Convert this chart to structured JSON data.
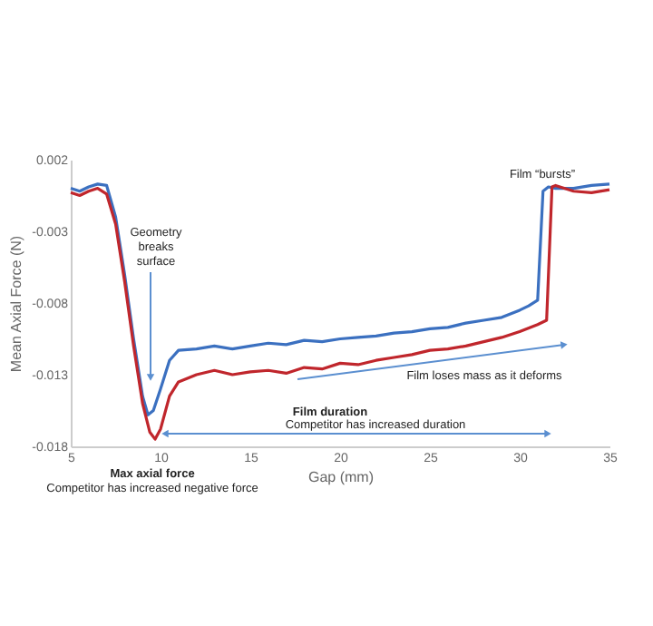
{
  "chart_data": {
    "type": "line",
    "xlabel": "Gap (mm)",
    "ylabel": "Mean Axial Force (N)",
    "xlim": [
      5,
      35
    ],
    "xticks": [
      5,
      10,
      15,
      20,
      25,
      30,
      35
    ],
    "ylim": [
      -0.018,
      0.002
    ],
    "yticks": [
      -0.018,
      -0.013,
      -0.008,
      -0.003,
      0.002
    ],
    "grid": false,
    "legend": false,
    "marker": "none",
    "line_style": "solid",
    "series": [
      {
        "color": "#3b70c0",
        "x": [
          5,
          5.5,
          6,
          6.5,
          7,
          7.5,
          8,
          8.5,
          9,
          9.3,
          9.6,
          10,
          10.5,
          11,
          12,
          13,
          14,
          15,
          16,
          17,
          18,
          19,
          20,
          21,
          22,
          23,
          24,
          25,
          26,
          27,
          28,
          29,
          30,
          30.5,
          31,
          31.3,
          31.6,
          32,
          33,
          34,
          35
        ],
        "values": [
          0.0,
          -0.0002,
          0.0001,
          0.0003,
          0.0002,
          -0.002,
          -0.006,
          -0.0105,
          -0.0145,
          -0.0158,
          -0.0155,
          -0.014,
          -0.012,
          -0.0113,
          -0.0112,
          -0.011,
          -0.0112,
          -0.011,
          -0.0108,
          -0.0109,
          -0.0106,
          -0.0107,
          -0.0105,
          -0.0104,
          -0.0103,
          -0.0101,
          -0.01,
          -0.0098,
          -0.0097,
          -0.0094,
          -0.0092,
          -0.009,
          -0.0085,
          -0.0082,
          -0.0078,
          -0.0002,
          0.0001,
          0.0,
          0.0,
          0.0002,
          0.0003
        ]
      },
      {
        "color": "#c0262c",
        "x": [
          5,
          5.5,
          6,
          6.5,
          7,
          7.5,
          8,
          8.5,
          9,
          9.4,
          9.7,
          10,
          10.5,
          11,
          12,
          13,
          14,
          15,
          16,
          17,
          18,
          19,
          20,
          21,
          22,
          23,
          24,
          25,
          26,
          27,
          28,
          29,
          30,
          31,
          31.5,
          31.8,
          32,
          33,
          34,
          35
        ],
        "values": [
          -0.0003,
          -0.0005,
          -0.0002,
          0.0,
          -0.0004,
          -0.0025,
          -0.0065,
          -0.011,
          -0.015,
          -0.017,
          -0.0175,
          -0.0168,
          -0.0145,
          -0.0135,
          -0.013,
          -0.0127,
          -0.013,
          -0.0128,
          -0.0127,
          -0.0129,
          -0.0125,
          -0.0126,
          -0.0122,
          -0.0123,
          -0.012,
          -0.0118,
          -0.0116,
          -0.0113,
          -0.0112,
          -0.011,
          -0.0107,
          -0.0104,
          -0.01,
          -0.0095,
          -0.0092,
          0.0001,
          0.0002,
          -0.0002,
          -0.0003,
          -0.0001
        ]
      }
    ],
    "annotations": [
      "Geometry\nbreaks\nsurface",
      "Film “bursts”",
      "Film loses mass as it deforms",
      "Film duration",
      "Competitor has increased duration",
      "Max axial force",
      "Competitor has increased negative force"
    ]
  }
}
